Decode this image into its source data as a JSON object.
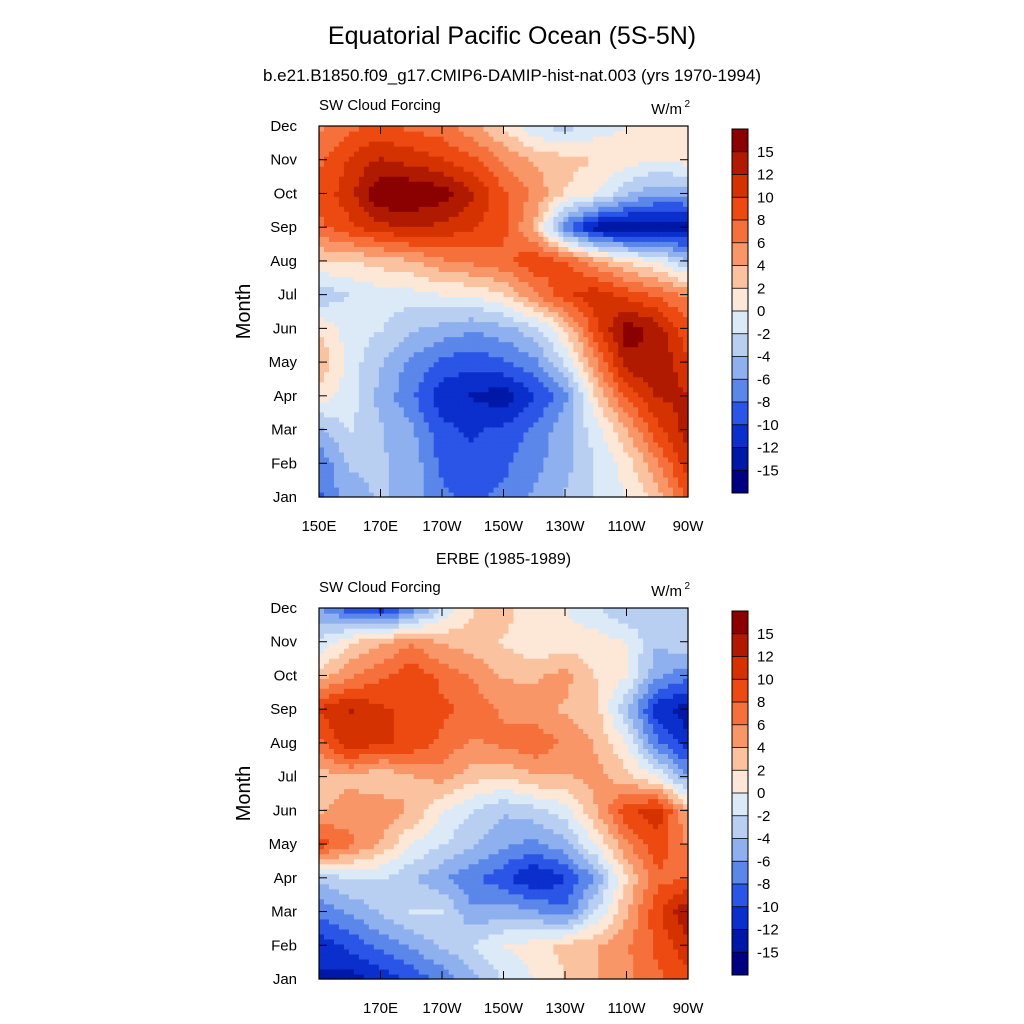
{
  "header": {
    "title": "Equatorial Pacific Ocean (5S-5N)",
    "subtitle": "b.e21.B1850.f09_g17.CMIP6-DAMIP-hist-nat.003 (yrs 1970-1994)"
  },
  "chart_data": [
    {
      "type": "heatmap",
      "panel_title": "",
      "left_label": "SW Cloud Forcing",
      "right_label": "W/m",
      "right_label_sup": "2",
      "ylabel": "Month",
      "x_ticks": [
        "150E",
        "170E",
        "170W",
        "150W",
        "130W",
        "110W",
        "90W"
      ],
      "y_ticks": [
        "Jan",
        "Feb",
        "Mar",
        "Apr",
        "May",
        "Jun",
        "Jul",
        "Aug",
        "Sep",
        "Oct",
        "Nov",
        "Dec"
      ],
      "x_range": [
        "150E",
        "90W"
      ],
      "colorbar": {
        "labels": [
          "15",
          "12",
          "10",
          "8",
          "6",
          "4",
          "2",
          "0",
          "-2",
          "-4",
          "-6",
          "-8",
          "-10",
          "-12",
          "-15"
        ],
        "colors": [
          "#8b0000",
          "#b01a00",
          "#d43200",
          "#ec4a10",
          "#f5703a",
          "#f89668",
          "#fbc2a0",
          "#fde8d8",
          "#dceaf8",
          "#b8cff2",
          "#8fb0ee",
          "#5b86ea",
          "#2a55e6",
          "#0a2fcc",
          "#0018a8",
          "#000080"
        ]
      },
      "grid": {
        "months": [
          "Jan",
          "Feb",
          "Mar",
          "Apr",
          "May",
          "Jun",
          "Jul",
          "Aug",
          "Sep",
          "Oct",
          "Nov",
          "Dec"
        ],
        "lon": [
          "150E",
          "160E",
          "170E",
          "180",
          "170W",
          "160W",
          "150W",
          "140W",
          "130W",
          "120W",
          "110W",
          "100W",
          "90W"
        ],
        "values": [
          [
            -9,
            -5,
            -4,
            -5,
            -8,
            -9,
            -8,
            -6,
            -4,
            -2,
            0,
            3,
            9
          ],
          [
            -8,
            -4,
            -4,
            -5,
            -9,
            -10,
            -9,
            -7,
            -5,
            -2,
            1,
            6,
            12
          ],
          [
            -5,
            -2,
            -4,
            -6,
            -10,
            -11,
            -10,
            -8,
            -5,
            -1,
            4,
            10,
            14
          ],
          [
            1,
            -1,
            -5,
            -8,
            -12,
            -13,
            -14,
            -11,
            -7,
            2,
            9,
            13,
            13
          ],
          [
            4,
            -1,
            -4,
            -7,
            -9,
            -10,
            -9,
            -7,
            -2,
            6,
            14,
            15,
            11
          ],
          [
            2,
            -1,
            -2,
            -4,
            -5,
            -6,
            -5,
            -3,
            2,
            10,
            16,
            14,
            9
          ],
          [
            -4,
            -2,
            -1,
            -1,
            0,
            0,
            2,
            6,
            10,
            12,
            10,
            8,
            6
          ],
          [
            2,
            2,
            3,
            4,
            6,
            7,
            8,
            10,
            9,
            5,
            2,
            0,
            -4
          ],
          [
            8,
            10,
            12,
            13,
            12,
            11,
            9,
            4,
            -8,
            -14,
            -15,
            -15,
            -14
          ],
          [
            9,
            12,
            17,
            17,
            16,
            13,
            9,
            6,
            2,
            0,
            -4,
            -6,
            -6
          ],
          [
            8,
            11,
            13,
            12,
            11,
            9,
            6,
            4,
            3,
            2,
            1,
            0,
            1
          ],
          [
            6,
            8,
            9,
            8,
            7,
            5,
            2,
            -2,
            -3,
            -1,
            0,
            1,
            2
          ]
        ]
      }
    },
    {
      "type": "heatmap",
      "panel_title": "ERBE (1985-1989)",
      "left_label": "SW Cloud Forcing",
      "right_label": "W/m",
      "right_label_sup": "2",
      "ylabel": "Month",
      "x_ticks": [
        "",
        "170E",
        "170W",
        "150W",
        "130W",
        "110W",
        "90W"
      ],
      "y_ticks": [
        "Jan",
        "Feb",
        "Mar",
        "Apr",
        "May",
        "Jun",
        "Jul",
        "Aug",
        "Sep",
        "Oct",
        "Nov",
        "Dec"
      ],
      "x_range": [
        "150E",
        "90W"
      ],
      "colorbar": {
        "labels": [
          "15",
          "12",
          "10",
          "8",
          "6",
          "4",
          "2",
          "0",
          "-2",
          "-4",
          "-6",
          "-8",
          "-10",
          "-12",
          "-15"
        ],
        "colors": [
          "#8b0000",
          "#b01a00",
          "#d43200",
          "#ec4a10",
          "#f5703a",
          "#f89668",
          "#fbc2a0",
          "#fde8d8",
          "#dceaf8",
          "#b8cff2",
          "#8fb0ee",
          "#5b86ea",
          "#2a55e6",
          "#0a2fcc",
          "#0018a8",
          "#000080"
        ]
      },
      "grid": {
        "months": [
          "Jan",
          "Feb",
          "Mar",
          "Apr",
          "May",
          "Jun",
          "Jul",
          "Aug",
          "Sep",
          "Oct",
          "Nov",
          "Dec"
        ],
        "lon": [
          "150E",
          "160E",
          "170E",
          "180",
          "170W",
          "160W",
          "150W",
          "140W",
          "130W",
          "120W",
          "110W",
          "100W",
          "90W"
        ],
        "values": [
          [
            -13,
            -14,
            -12,
            -10,
            -8,
            -5,
            -2,
            0,
            2,
            4,
            6,
            8,
            10
          ],
          [
            -12,
            -10,
            -8,
            -6,
            -4,
            -2,
            0,
            1,
            3,
            4,
            6,
            9,
            12
          ],
          [
            -8,
            -6,
            -4,
            -2,
            -2,
            -6,
            -5,
            -6,
            -8,
            -2,
            4,
            10,
            15
          ],
          [
            -4,
            -2,
            -2,
            -4,
            -6,
            -8,
            -10,
            -13,
            -11,
            -6,
            2,
            8,
            8
          ],
          [
            10,
            7,
            4,
            0,
            -2,
            -4,
            -6,
            -7,
            -5,
            0,
            6,
            10,
            6
          ],
          [
            4,
            5,
            6,
            4,
            0,
            -2,
            -4,
            -3,
            -1,
            4,
            10,
            12,
            4
          ],
          [
            3,
            4,
            2,
            4,
            5,
            3,
            2,
            4,
            4,
            5,
            3,
            0,
            -6
          ],
          [
            8,
            12,
            11,
            10,
            8,
            6,
            7,
            8,
            6,
            4,
            0,
            -8,
            -12
          ],
          [
            11,
            13,
            11,
            10,
            9,
            8,
            6,
            5,
            4,
            3,
            -4,
            -12,
            -14
          ],
          [
            3,
            6,
            8,
            10,
            8,
            6,
            4,
            4,
            5,
            2,
            0,
            -6,
            -8
          ],
          [
            -2,
            2,
            4,
            6,
            4,
            3,
            2,
            0,
            1,
            1,
            0,
            -4,
            -2
          ],
          [
            -6,
            -10,
            -12,
            -8,
            -2,
            2,
            3,
            1,
            0,
            -2,
            -4,
            -4,
            -2
          ]
        ]
      }
    }
  ]
}
